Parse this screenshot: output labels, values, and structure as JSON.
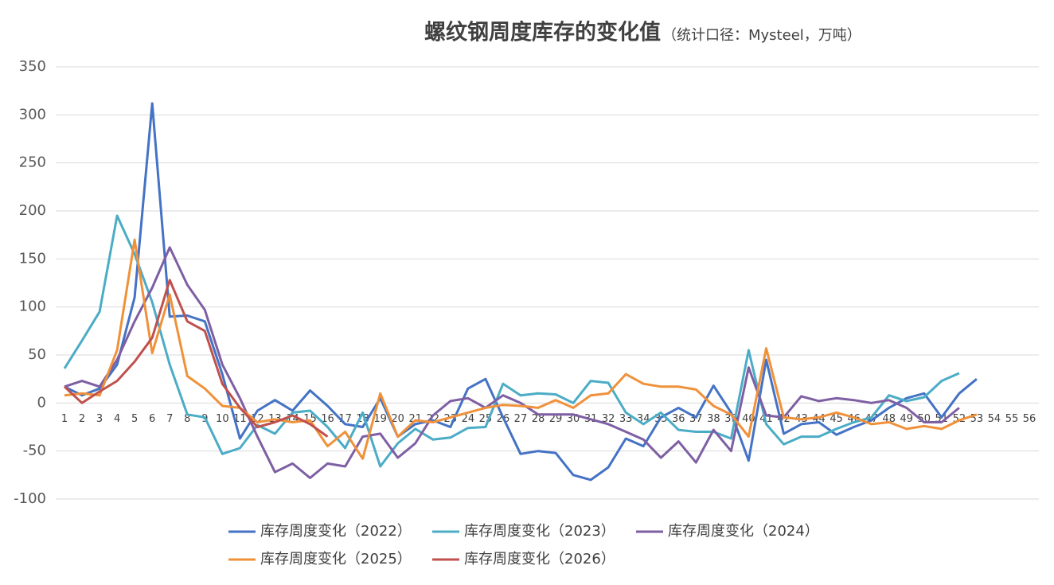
{
  "chart_data": {
    "type": "line",
    "title": "螺纹钢周度库存的变化值",
    "subtitle": "（统计口径：Mysteel，万吨）",
    "categories": [
      "1",
      "2",
      "3",
      "4",
      "5",
      "6",
      "7",
      "8",
      "9",
      "10",
      "11",
      "12",
      "13",
      "14",
      "15",
      "16",
      "17",
      "18",
      "19",
      "20",
      "21",
      "22",
      "23",
      "24",
      "25",
      "26",
      "27",
      "28",
      "29",
      "30",
      "31",
      "32",
      "33",
      "34",
      "35",
      "36",
      "37",
      "38",
      "39",
      "40",
      "41",
      "42",
      "43",
      "44",
      "45",
      "46",
      "47",
      "48",
      "49",
      "50",
      "51",
      "52",
      "53",
      "54",
      "55",
      "56"
    ],
    "ylim": [
      -100,
      350
    ],
    "yticks": [
      -100,
      -50,
      0,
      50,
      100,
      150,
      200,
      250,
      300,
      350
    ],
    "grid": true,
    "legend": "bottom",
    "series": [
      {
        "name": "库存周度变化（2022）",
        "color": "#4472c4",
        "values": [
          17,
          8,
          15,
          40,
          110,
          312,
          90,
          91,
          85,
          30,
          -37,
          -8,
          3,
          -8,
          13,
          -3,
          -22,
          -25,
          5,
          -35,
          -22,
          -18,
          -25,
          15,
          25,
          -15,
          -53,
          -50,
          -52,
          -75,
          -80,
          -67,
          -37,
          -45,
          -15,
          -5,
          -15,
          18,
          -10,
          -60,
          45,
          -32,
          -22,
          -20,
          -33,
          -25,
          -18,
          -5,
          5,
          10,
          -15,
          10,
          25,
          null,
          null,
          null
        ]
      },
      {
        "name": "库存周度变化（2023）",
        "color": "#4bacc6",
        "values": [
          36,
          65,
          95,
          195,
          155,
          105,
          40,
          -12,
          -15,
          -53,
          -47,
          -23,
          -32,
          -10,
          -8,
          -25,
          -47,
          -10,
          -66,
          -42,
          -27,
          -38,
          -36,
          -26,
          -25,
          20,
          8,
          10,
          9,
          0,
          23,
          21,
          -10,
          -22,
          -10,
          -28,
          -30,
          -30,
          -37,
          55,
          -22,
          -43,
          -35,
          -35,
          -27,
          -20,
          -15,
          8,
          2,
          6,
          23,
          31,
          null,
          null,
          null,
          null
        ]
      },
      {
        "name": "库存周度变化（2024）",
        "color": "#7e5fa3",
        "values": [
          17,
          23,
          17,
          45,
          85,
          120,
          162,
          123,
          97,
          40,
          5,
          -35,
          -72,
          -63,
          -78,
          -63,
          -66,
          -35,
          -32,
          -57,
          -42,
          -13,
          2,
          5,
          -5,
          8,
          0,
          -12,
          -12,
          -12,
          -17,
          -22,
          -30,
          -38,
          -57,
          -40,
          -62,
          -28,
          -50,
          37,
          -13,
          -15,
          7,
          2,
          5,
          3,
          0,
          3,
          -5,
          -20,
          -20,
          -5,
          null,
          null,
          null,
          null
        ]
      },
      {
        "name": "库存周度变化（2025）",
        "color": "#f0913a",
        "values": [
          8,
          10,
          8,
          55,
          170,
          52,
          113,
          28,
          15,
          -3,
          -5,
          -20,
          -17,
          -20,
          -18,
          -45,
          -30,
          -58,
          10,
          -35,
          -18,
          -20,
          -15,
          -10,
          -5,
          -2,
          -3,
          -5,
          3,
          -5,
          8,
          10,
          30,
          20,
          17,
          17,
          14,
          -3,
          -12,
          -35,
          57,
          -15,
          -17,
          -15,
          -10,
          -15,
          -22,
          -20,
          -27,
          -24,
          -27,
          -18,
          -12,
          null,
          null,
          null
        ]
      },
      {
        "name": "库存周度变化（2026）",
        "color": "#c0504d",
        "values": [
          17,
          0,
          12,
          23,
          43,
          68,
          128,
          85,
          75,
          20,
          -5,
          -25,
          -20,
          -13,
          -22,
          -35,
          null,
          null,
          null,
          null,
          null,
          null,
          null,
          null,
          null,
          null,
          null,
          null,
          null,
          null,
          null,
          null,
          null,
          null,
          null,
          null,
          null,
          null,
          null,
          null,
          null,
          null,
          null,
          null,
          null,
          null,
          null,
          null,
          null,
          null,
          null,
          null,
          null,
          null,
          null,
          null
        ]
      }
    ]
  }
}
